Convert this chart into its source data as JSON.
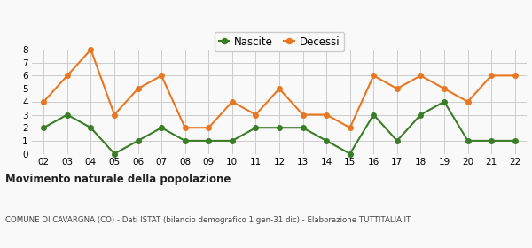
{
  "years": [
    "02",
    "03",
    "04",
    "05",
    "06",
    "07",
    "08",
    "09",
    "10",
    "11",
    "12",
    "13",
    "14",
    "15",
    "16",
    "17",
    "18",
    "19",
    "20",
    "21",
    "22"
  ],
  "nascite": [
    2,
    3,
    2,
    0,
    1,
    2,
    1,
    1,
    1,
    2,
    2,
    2,
    1,
    0,
    3,
    1,
    3,
    4,
    1,
    1,
    1
  ],
  "decessi": [
    4,
    6,
    8,
    3,
    5,
    6,
    2,
    2,
    4,
    3,
    5,
    3,
    3,
    2,
    6,
    5,
    6,
    5,
    4,
    6,
    6
  ],
  "nascite_color": "#3a7d27",
  "decessi_color": "#e87722",
  "nascite_label": "Nascite",
  "decessi_label": "Decessi",
  "ylim": [
    0,
    8
  ],
  "yticks": [
    0,
    1,
    2,
    3,
    4,
    5,
    6,
    7,
    8
  ],
  "title": "Movimento naturale della popolazione",
  "subtitle": "COMUNE DI CAVARGNA (CO) - Dati ISTAT (bilancio demografico 1 gen-31 dic) - Elaborazione TUTTITALIA.IT",
  "grid_color": "#cccccc",
  "background_color": "#f9f9f9",
  "marker_size": 4,
  "line_width": 1.5
}
